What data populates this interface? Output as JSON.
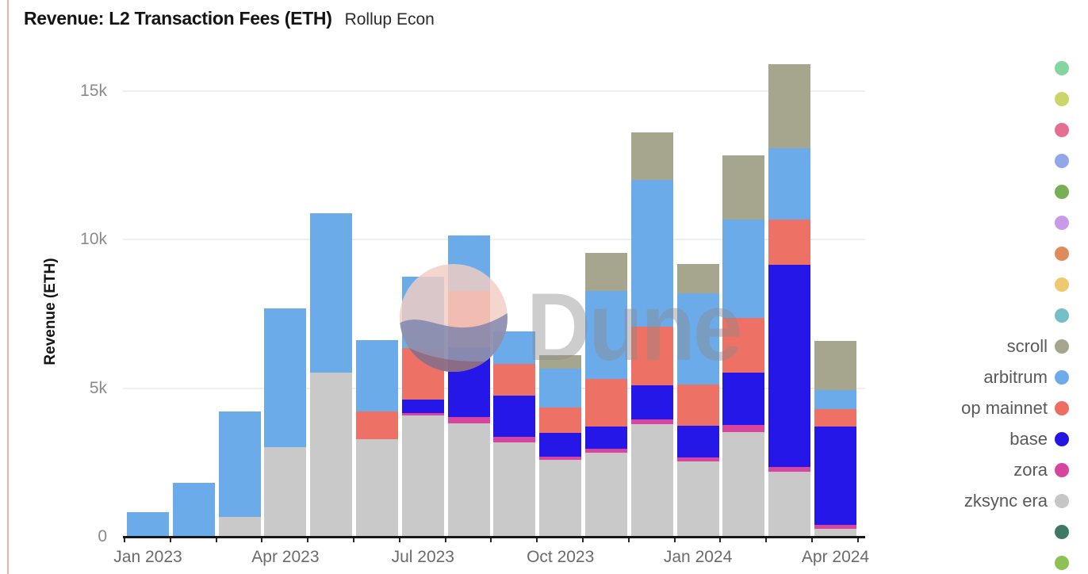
{
  "header": {
    "title": "Revenue: L2 Transaction Fees (ETH)",
    "subtitle": "Rollup Econ"
  },
  "watermark": {
    "text": "Dune"
  },
  "y_axis": {
    "label": "Revenue (ETH)",
    "ticks": [
      {
        "label": "15k",
        "value": 15000
      },
      {
        "label": "10k",
        "value": 10000
      },
      {
        "label": "5k",
        "value": 5000
      },
      {
        "label": "0",
        "value": 0
      }
    ],
    "grid_values": [
      5000,
      10000,
      15000
    ]
  },
  "x_axis": {
    "tick_labels": [
      {
        "label": "Jan 2023",
        "category_index": 0
      },
      {
        "label": "Apr 2023",
        "category_index": 3
      },
      {
        "label": "Jul 2023",
        "category_index": 6
      },
      {
        "label": "Oct 2023",
        "category_index": 9
      },
      {
        "label": "Jan 2024",
        "category_index": 12
      },
      {
        "label": "Apr 2024",
        "category_index": 15
      }
    ]
  },
  "legend": {
    "unlabeled_top_colors": [
      "#82d69e",
      "#cbd56c",
      "#e76e93",
      "#90a7ea",
      "#76b052",
      "#c89ae9",
      "#e18a5a",
      "#eec96f",
      "#74bfc8"
    ],
    "items": [
      {
        "label": "scroll",
        "color": "#a6a68e"
      },
      {
        "label": "arbitrum",
        "color": "#6dacea"
      },
      {
        "label": "op mainnet",
        "color": "#ee6d61"
      },
      {
        "label": "base",
        "color": "#2316e3"
      },
      {
        "label": "zora",
        "color": "#d6459e"
      },
      {
        "label": "zksync era",
        "color": "#c6c6c6"
      }
    ],
    "unlabeled_bottom_colors": [
      "#3e7a62",
      "#8cc254"
    ]
  },
  "chart_data": {
    "type": "bar",
    "stacked": true,
    "title": "Revenue: L2 Transaction Fees (ETH)",
    "subtitle": "Rollup Econ",
    "ylabel": "Revenue (ETH)",
    "xlabel": "",
    "ylim": [
      0,
      16000
    ],
    "grid": true,
    "legend_position": "right",
    "categories": [
      "Jan 2023",
      "Feb 2023",
      "Mar 2023",
      "Apr 2023",
      "May 2023",
      "Jun 2023",
      "Jul 2023",
      "Aug 2023",
      "Sep 2023",
      "Oct 2023",
      "Nov 2023",
      "Dec 2023",
      "Jan 2024",
      "Feb 2024",
      "Mar 2024",
      "Apr 2024"
    ],
    "series": [
      {
        "name": "zksync era",
        "color": "#c9c9c9",
        "values": [
          0,
          0,
          650,
          3000,
          5500,
          3250,
          4050,
          3800,
          3150,
          2550,
          2800,
          3750,
          2500,
          3500,
          2150,
          250
        ]
      },
      {
        "name": "zora",
        "color": "#d8459f",
        "values": [
          0,
          0,
          0,
          0,
          0,
          0,
          80,
          200,
          180,
          130,
          130,
          180,
          150,
          240,
          180,
          130
        ]
      },
      {
        "name": "base",
        "color": "#2417e8",
        "values": [
          0,
          0,
          0,
          0,
          0,
          0,
          450,
          2350,
          1400,
          780,
          750,
          1150,
          1050,
          1750,
          6800,
          3300
        ]
      },
      {
        "name": "op mainnet",
        "color": "#ed7164",
        "values": [
          0,
          0,
          0,
          0,
          0,
          950,
          1750,
          1900,
          1050,
          850,
          1600,
          1950,
          1400,
          1850,
          1500,
          580
        ]
      },
      {
        "name": "arbitrum",
        "color": "#6cabe9",
        "values": [
          800,
          1800,
          3550,
          4650,
          5350,
          2400,
          2400,
          1850,
          1100,
          1330,
          2950,
          4950,
          3050,
          3300,
          2400,
          640
        ]
      },
      {
        "name": "scroll",
        "color": "#a6a68e",
        "values": [
          0,
          0,
          0,
          0,
          0,
          0,
          0,
          0,
          0,
          450,
          1300,
          1600,
          1000,
          2150,
          2850,
          1650
        ]
      }
    ]
  }
}
